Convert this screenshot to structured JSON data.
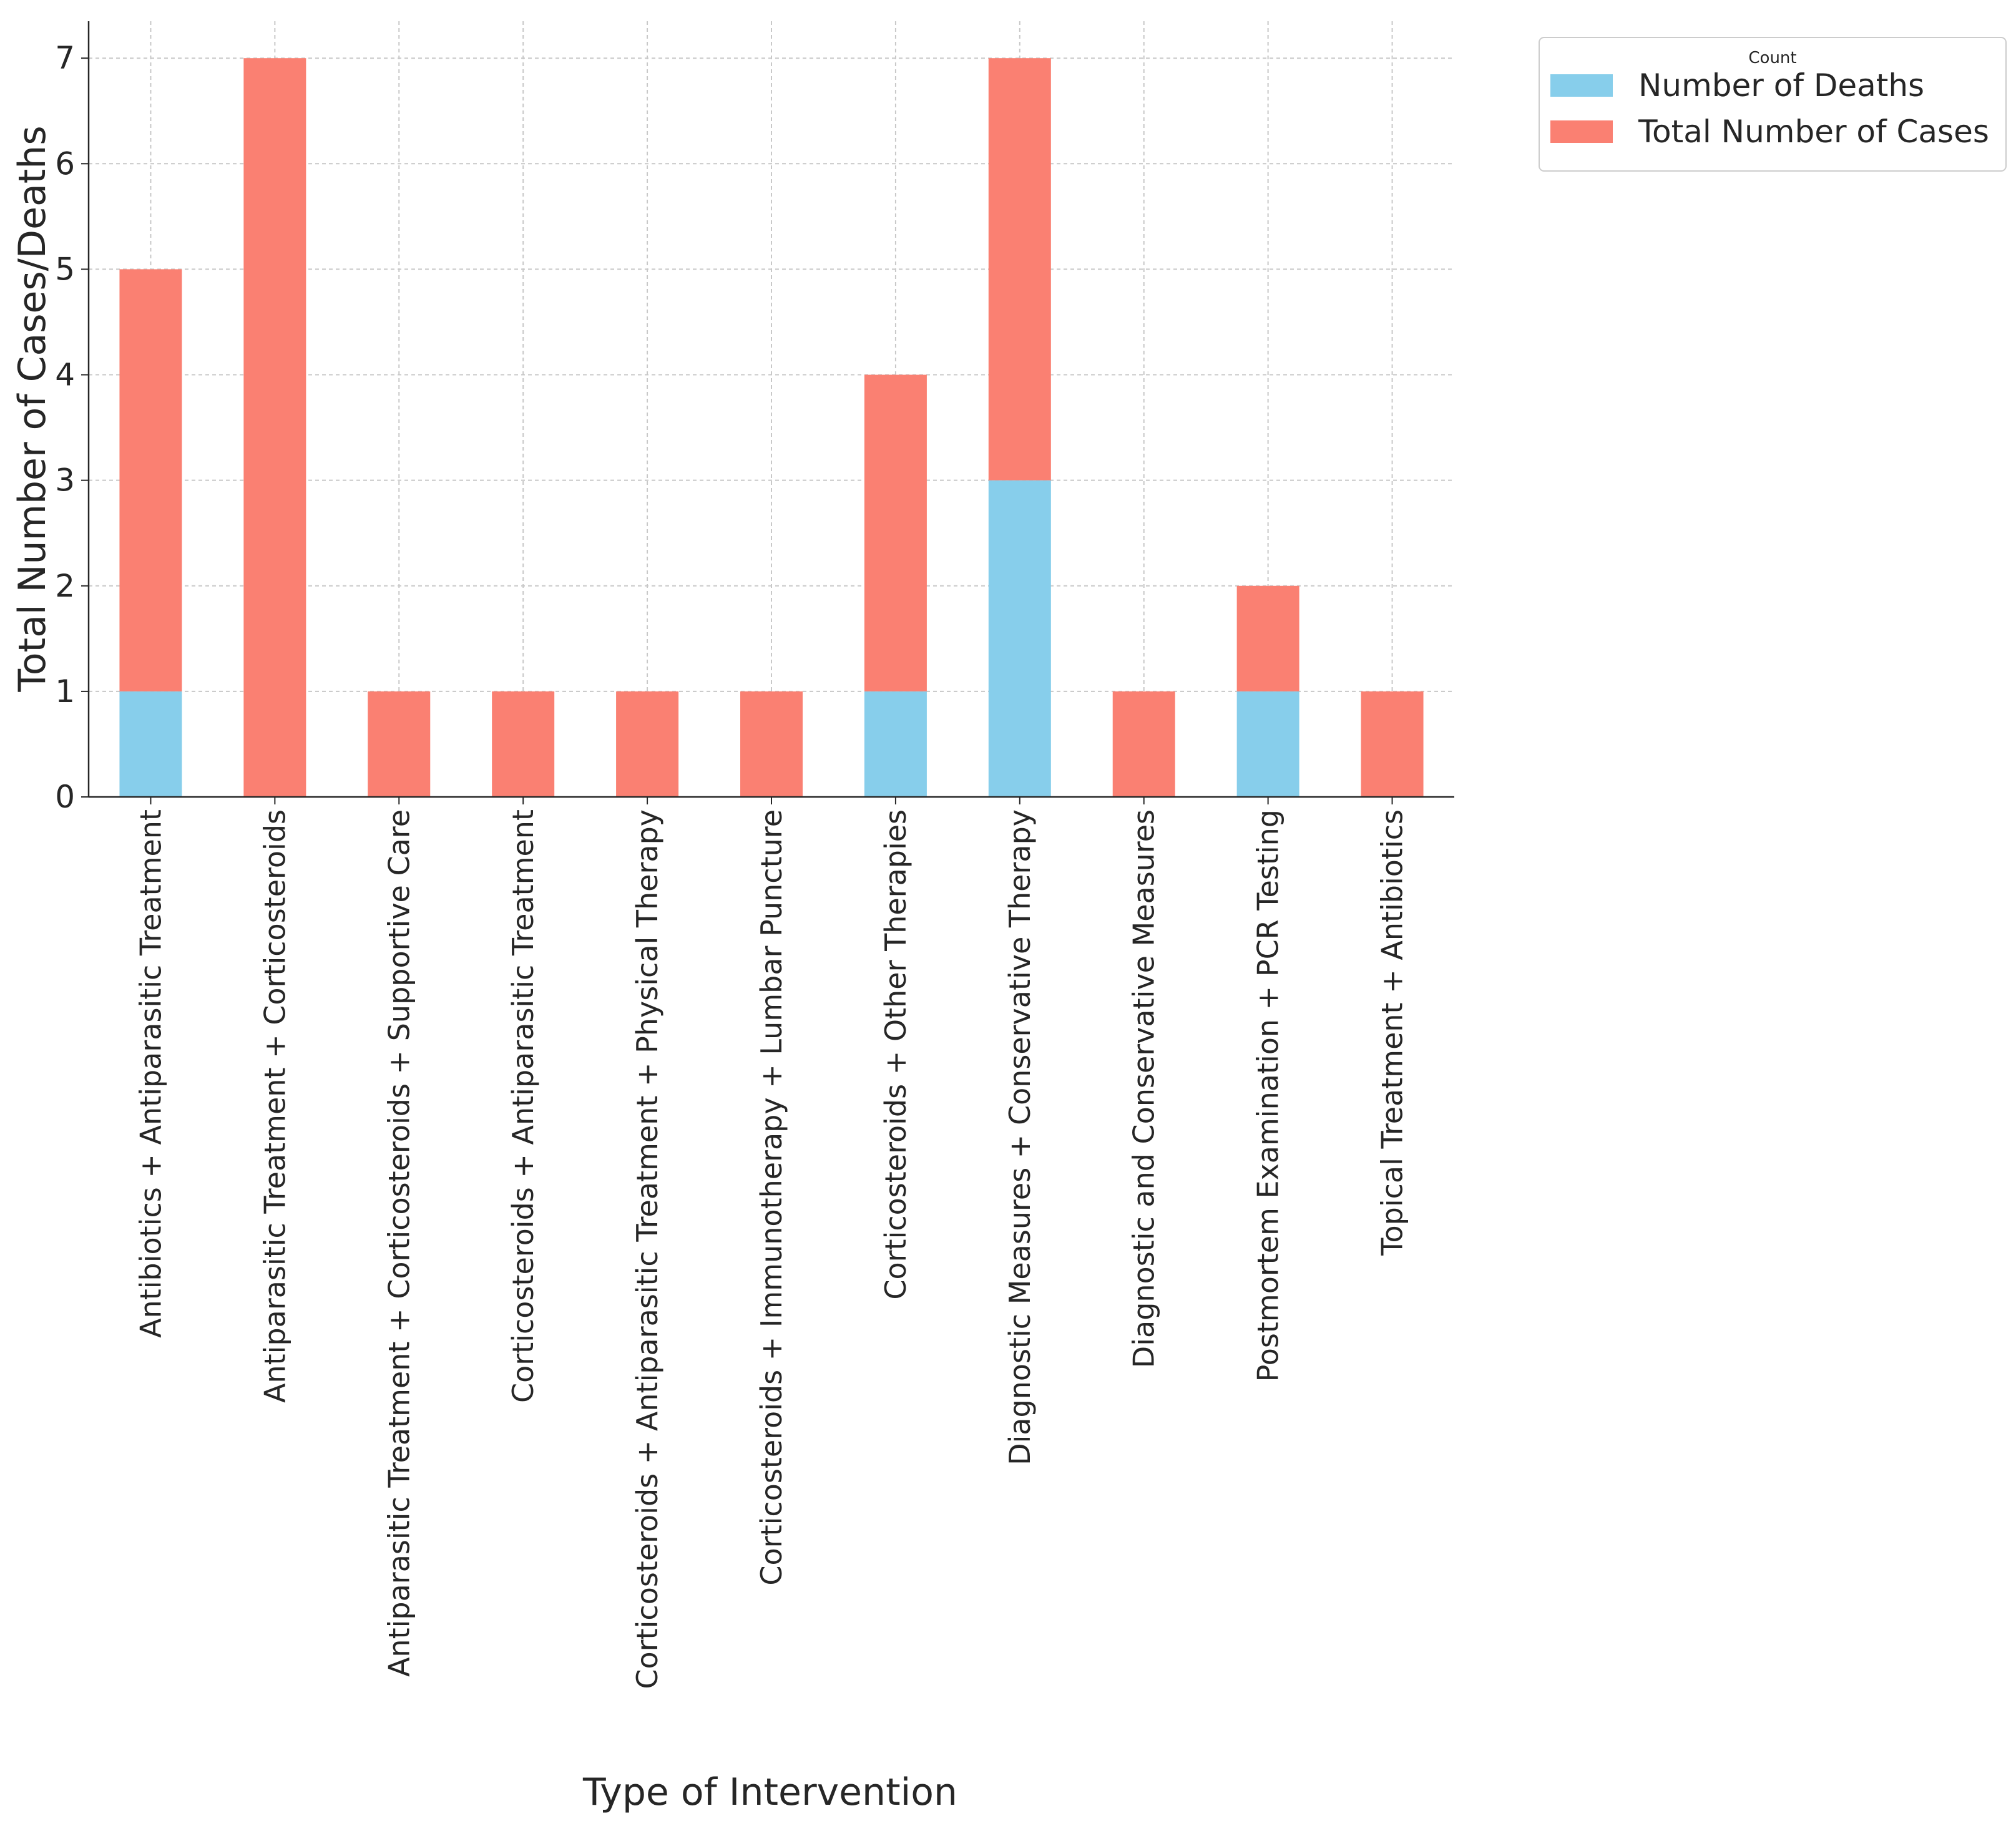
{
  "chart_data": {
    "type": "bar",
    "stacked": true,
    "title": "",
    "xlabel": "Type of Intervention",
    "ylabel": "Total Number of Cases/Deaths",
    "ylim": [
      0,
      7.35
    ],
    "yticks": [
      0,
      1,
      2,
      3,
      4,
      5,
      6,
      7
    ],
    "grid": true,
    "categories": [
      "Antibiotics + Antiparasitic Treatment",
      "Antiparasitic Treatment + Corticosteroids",
      "Antiparasitic Treatment + Corticosteroids + Supportive Care",
      "Corticosteroids + Antiparasitic Treatment",
      "Corticosteroids + Antiparasitic Treatment + Physical Therapy",
      "Corticosteroids + Immunotherapy + Lumbar Puncture",
      "Corticosteroids + Other Therapies",
      "Diagnostic Measures + Conservative Therapy",
      "Diagnostic and Conservative Measures",
      "Postmortem Examination + PCR Testing",
      "Topical Treatment + Antibiotics"
    ],
    "series": [
      {
        "name": "Number of Deaths",
        "color": "#87ceeb",
        "values": [
          1,
          0,
          0,
          0,
          0,
          0,
          1,
          3,
          0,
          1,
          0
        ]
      },
      {
        "name": "Total Number of Cases",
        "color": "#fa8072",
        "values": [
          4,
          7,
          1,
          1,
          1,
          1,
          3,
          4,
          1,
          1,
          1
        ]
      }
    ],
    "legend": {
      "title": "Count",
      "position": "outside-top-right"
    }
  }
}
